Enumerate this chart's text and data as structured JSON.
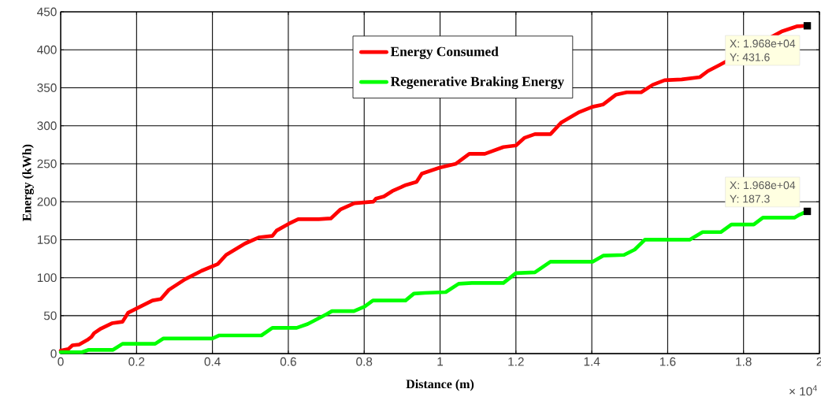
{
  "chart_data": {
    "type": "line",
    "xlabel": "Distance (m)",
    "ylabel": "Energy (kWh)",
    "xlim": [
      0,
      2
    ],
    "xticks": [
      0,
      0.2,
      0.4,
      0.6,
      0.8,
      1,
      1.2,
      1.4,
      1.6,
      1.8,
      2
    ],
    "ylim": [
      0,
      450
    ],
    "yticks": [
      0,
      50,
      100,
      150,
      200,
      250,
      300,
      350,
      400,
      450
    ],
    "grid": true,
    "legend": "top",
    "line_style": "solid",
    "series": [
      {
        "name": "Energy Consumed",
        "color": "#ff0000",
        "x": [
          0,
          0.02,
          0.031,
          0.049,
          0.07,
          0.081,
          0.088,
          0.106,
          0.135,
          0.163,
          0.178,
          0.214,
          0.242,
          0.264,
          0.285,
          0.328,
          0.371,
          0.414,
          0.436,
          0.486,
          0.522,
          0.558,
          0.569,
          0.601,
          0.626,
          0.68,
          0.712,
          0.738,
          0.774,
          0.824,
          0.831,
          0.852,
          0.874,
          0.91,
          0.938,
          0.952,
          1.0,
          1.042,
          1.077,
          1.118,
          1.167,
          1.2,
          1.222,
          1.25,
          1.291,
          1.319,
          1.367,
          1.402,
          1.43,
          1.464,
          1.492,
          1.53,
          1.561,
          1.592,
          1.637,
          1.685,
          1.706,
          1.737,
          1.9,
          1.942,
          1.968
        ],
        "values": [
          4,
          6,
          11,
          12,
          18,
          22,
          27,
          33,
          40,
          42,
          54,
          63,
          70,
          72,
          84,
          98,
          109,
          118,
          130,
          145,
          153,
          155,
          162,
          171,
          177,
          177,
          178,
          190,
          198,
          200,
          204,
          207,
          214,
          222,
          226,
          237,
          245,
          250,
          263,
          263,
          272,
          274,
          284,
          289,
          289,
          304,
          318,
          325,
          328,
          341,
          344,
          344,
          354,
          360,
          361,
          364,
          372,
          380,
          424,
          431,
          431.6
        ]
      },
      {
        "name": "Regenerative Braking Energy",
        "color": "#00ff00",
        "x": [
          0,
          0.056,
          0.074,
          0.138,
          0.163,
          0.249,
          0.271,
          0.4,
          0.418,
          0.529,
          0.558,
          0.622,
          0.651,
          0.701,
          0.715,
          0.773,
          0.801,
          0.823,
          0.909,
          0.931,
          0.96,
          1.015,
          1.049,
          1.084,
          1.167,
          1.2,
          1.25,
          1.291,
          1.402,
          1.43,
          1.485,
          1.513,
          1.54,
          1.658,
          1.692,
          1.74,
          1.768,
          1.827,
          1.851,
          1.934,
          1.948,
          1.968
        ],
        "values": [
          2,
          2,
          5,
          5,
          13,
          13,
          20,
          20,
          24,
          24,
          34,
          34,
          39,
          52,
          56,
          56,
          62,
          70,
          70,
          79,
          80,
          81,
          92,
          93,
          93,
          106,
          107,
          121,
          121,
          129,
          130,
          137,
          150,
          150,
          160,
          160,
          170,
          170,
          179,
          179,
          183,
          187.3
        ]
      }
    ],
    "annotations": [
      "X: 1.968e+04",
      "Y: 431.6",
      "X: 1.968e+04",
      "Y: 187.3",
      "× 10$^{4}$"
    ]
  }
}
